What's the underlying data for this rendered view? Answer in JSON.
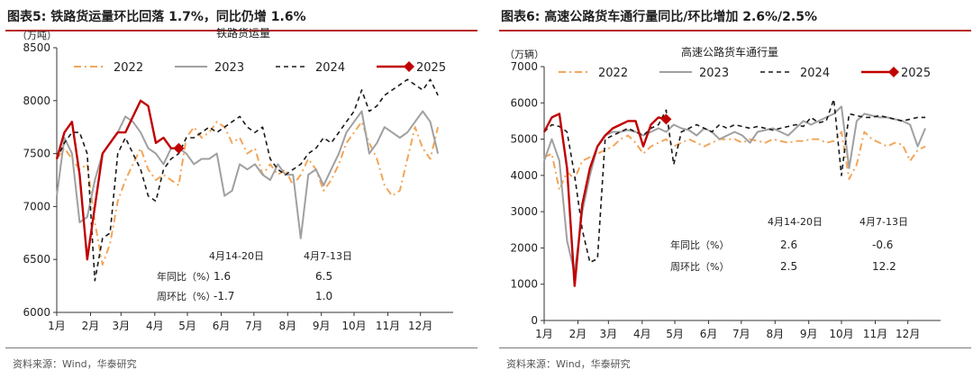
{
  "left": {
    "figure_title": "图表5:  铁路货运量环比回落 1.7%，同比仍增 1.6%",
    "source": "资料来源：Wind，华泰研究",
    "table": {
      "col_headers": [
        "4月14-20日",
        "4月7-13日"
      ],
      "rows": [
        {
          "label": "年同比（%）",
          "values": [
            "1.6",
            "6.5"
          ]
        },
        {
          "label": "周环比（%）",
          "values": [
            "-1.7",
            "1.0"
          ]
        }
      ]
    }
  },
  "right": {
    "figure_title": "图表6:  高速公路货车通行量同比/环比增加 2.6%/2.5%",
    "source": "资料来源：Wind，华泰研究",
    "table": {
      "col_headers": [
        "4月14-20日",
        "4月7-13日"
      ],
      "rows": [
        {
          "label": "年同比（%）",
          "values": [
            "2.6",
            "-0.6"
          ]
        },
        {
          "label": "周环比（%）",
          "values": [
            "2.5",
            "12.2"
          ]
        }
      ]
    }
  },
  "chart_data": [
    {
      "type": "line",
      "title": "铁路货运量",
      "unit_label": "（万吨）",
      "ylim": [
        6000,
        8500
      ],
      "yticks": [
        6000,
        6500,
        7000,
        7500,
        8000,
        8500
      ],
      "xlim": [
        0,
        52
      ],
      "xticks": [
        {
          "label": "1月",
          "pos": 0
        },
        {
          "label": "2月",
          "pos": 4.43
        },
        {
          "label": "3月",
          "pos": 8.43
        },
        {
          "label": "4月",
          "pos": 12.86
        },
        {
          "label": "5月",
          "pos": 17.14
        },
        {
          "label": "6月",
          "pos": 21.57
        },
        {
          "label": "7月",
          "pos": 25.86
        },
        {
          "label": "8月",
          "pos": 30.29
        },
        {
          "label": "9月",
          "pos": 34.71
        },
        {
          "label": "10月",
          "pos": 39.0
        },
        {
          "label": "11月",
          "pos": 43.43
        },
        {
          "label": "12月",
          "pos": 47.71
        }
      ],
      "grid": false,
      "legend_position": "top",
      "series": [
        {
          "name": "2022",
          "color": "#f2a65a",
          "dash": "8,4,2,4",
          "width": 2,
          "x": [
            0,
            1,
            2,
            3,
            4,
            5,
            6,
            7,
            8,
            9,
            10,
            11,
            12,
            13,
            14,
            15,
            16,
            17,
            18,
            19,
            20,
            21,
            22,
            23,
            24,
            25,
            26,
            27,
            28,
            29,
            30,
            31,
            32,
            33,
            34,
            35,
            36,
            37,
            38,
            39,
            40,
            41,
            42,
            43,
            44,
            45,
            46,
            47,
            48,
            49,
            50
          ],
          "y": [
            7450,
            7550,
            7450,
            7350,
            7400,
            6850,
            6450,
            6650,
            7050,
            7250,
            7400,
            7550,
            7350,
            7250,
            7300,
            7250,
            7200,
            7650,
            7750,
            7650,
            7700,
            7800,
            7750,
            7600,
            7650,
            7500,
            7550,
            7300,
            7400,
            7300,
            7350,
            7200,
            7300,
            7450,
            7350,
            7150,
            7250,
            7400,
            7600,
            7700,
            7800,
            7600,
            7450,
            7200,
            7100,
            7150,
            7450,
            7750,
            7550,
            7450,
            7750
          ]
        },
        {
          "name": "2023",
          "color": "#a0a0a0",
          "dash": "",
          "width": 2,
          "x": [
            0,
            1,
            2,
            3,
            4,
            5,
            6,
            7,
            8,
            9,
            10,
            11,
            12,
            13,
            14,
            15,
            16,
            17,
            18,
            19,
            20,
            21,
            22,
            23,
            24,
            25,
            26,
            27,
            28,
            29,
            30,
            31,
            32,
            33,
            34,
            35,
            36,
            37,
            38,
            39,
            40,
            41,
            42,
            43,
            44,
            45,
            46,
            47,
            48,
            49,
            50
          ],
          "y": [
            7100,
            7650,
            7500,
            6850,
            6900,
            7250,
            7500,
            7600,
            7700,
            7850,
            7800,
            7700,
            7550,
            7500,
            7400,
            7550,
            7550,
            7500,
            7400,
            7450,
            7450,
            7500,
            7100,
            7150,
            7400,
            7350,
            7400,
            7300,
            7250,
            7400,
            7300,
            7300,
            6700,
            7300,
            7350,
            7200,
            7350,
            7500,
            7700,
            7800,
            7900,
            7500,
            7600,
            7750,
            7700,
            7650,
            7700,
            7800,
            7900,
            7800,
            7500
          ]
        },
        {
          "name": "2024",
          "color": "#1a1a1a",
          "dash": "5,4",
          "width": 1.6,
          "x": [
            0,
            1,
            2,
            3,
            4,
            5,
            6,
            7,
            8,
            9,
            10,
            11,
            12,
            13,
            14,
            15,
            16,
            17,
            18,
            19,
            20,
            21,
            22,
            23,
            24,
            25,
            26,
            27,
            28,
            29,
            30,
            31,
            32,
            33,
            34,
            35,
            36,
            37,
            38,
            39,
            40,
            41,
            42,
            43,
            44,
            45,
            46,
            47,
            48,
            49,
            50
          ],
          "y": [
            7450,
            7600,
            7700,
            7700,
            7500,
            6300,
            6700,
            6750,
            7500,
            7650,
            7500,
            7350,
            7100,
            7050,
            7350,
            7450,
            7500,
            7650,
            7650,
            7700,
            7750,
            7700,
            7750,
            7800,
            7850,
            7750,
            7700,
            7750,
            7450,
            7350,
            7300,
            7350,
            7400,
            7500,
            7550,
            7650,
            7600,
            7700,
            7800,
            7900,
            8100,
            7900,
            7950,
            8050,
            8100,
            8150,
            8200,
            8150,
            8100,
            8200,
            8050
          ]
        },
        {
          "name": "2025",
          "color": "#c00000",
          "dash": "",
          "width": 2.4,
          "last_marker": "diamond",
          "x": [
            0,
            1,
            2,
            3,
            4,
            5,
            6,
            7,
            8,
            9,
            10,
            11,
            12,
            13,
            14,
            15,
            16
          ],
          "y": [
            7450,
            7700,
            7800,
            7300,
            6500,
            7000,
            7500,
            7600,
            7700,
            7700,
            7850,
            8000,
            7950,
            7600,
            7650,
            7550,
            7550
          ]
        }
      ]
    },
    {
      "type": "line",
      "title": "高速公路货车通行量",
      "unit_label": "（万辆）",
      "ylim": [
        0,
        7000
      ],
      "yticks": [
        0,
        1000,
        2000,
        3000,
        4000,
        5000,
        6000,
        7000
      ],
      "xlim": [
        0,
        52
      ],
      "xticks": [
        {
          "label": "1月",
          "pos": 0
        },
        {
          "label": "2月",
          "pos": 4.43
        },
        {
          "label": "3月",
          "pos": 8.43
        },
        {
          "label": "4月",
          "pos": 12.86
        },
        {
          "label": "5月",
          "pos": 17.14
        },
        {
          "label": "6月",
          "pos": 21.57
        },
        {
          "label": "7月",
          "pos": 25.86
        },
        {
          "label": "8月",
          "pos": 30.29
        },
        {
          "label": "9月",
          "pos": 34.71
        },
        {
          "label": "10月",
          "pos": 39.0
        },
        {
          "label": "11月",
          "pos": 43.43
        },
        {
          "label": "12月",
          "pos": 47.71
        }
      ],
      "grid": false,
      "legend_position": "top",
      "series": [
        {
          "name": "2022",
          "color": "#f2a65a",
          "dash": "8,4,2,4",
          "width": 2,
          "x": [
            0,
            1,
            2,
            3,
            4,
            5,
            6,
            7,
            8,
            9,
            10,
            11,
            12,
            13,
            14,
            15,
            16,
            17,
            18,
            19,
            20,
            21,
            22,
            23,
            24,
            25,
            26,
            27,
            28,
            29,
            30,
            31,
            32,
            33,
            34,
            35,
            36,
            37,
            38,
            39,
            40,
            41,
            42,
            43,
            44,
            45,
            46,
            47,
            48,
            49,
            50
          ],
          "y": [
            4500,
            4600,
            3600,
            4100,
            3900,
            4400,
            4500,
            4600,
            4700,
            4800,
            5000,
            5100,
            4900,
            4600,
            4800,
            4900,
            5000,
            4800,
            4900,
            5000,
            4900,
            4800,
            4900,
            5000,
            5000,
            5000,
            4900,
            5000,
            4950,
            4900,
            5000,
            4950,
            4900,
            4950,
            4950,
            5000,
            5000,
            4900,
            4950,
            5200,
            3900,
            4300,
            5200,
            5000,
            4900,
            4800,
            4900,
            4850,
            4400,
            4700,
            4800
          ]
        },
        {
          "name": "2023",
          "color": "#a0a0a0",
          "dash": "",
          "width": 2,
          "x": [
            0,
            1,
            2,
            3,
            4,
            5,
            6,
            7,
            8,
            9,
            10,
            11,
            12,
            13,
            14,
            15,
            16,
            17,
            18,
            19,
            20,
            21,
            22,
            23,
            24,
            25,
            26,
            27,
            28,
            29,
            30,
            31,
            32,
            33,
            34,
            35,
            36,
            37,
            38,
            39,
            40,
            41,
            42,
            43,
            44,
            45,
            46,
            47,
            48,
            49,
            50
          ],
          "y": [
            4400,
            5000,
            4400,
            2200,
            1300,
            3000,
            4000,
            4800,
            5100,
            5200,
            5200,
            5250,
            5200,
            5100,
            5200,
            5300,
            5200,
            5400,
            5300,
            5250,
            5100,
            5300,
            5200,
            5000,
            5100,
            5200,
            5100,
            4900,
            5200,
            5250,
            5300,
            5200,
            5100,
            5300,
            5500,
            5400,
            5500,
            5600,
            5700,
            5900,
            4200,
            5500,
            5700,
            5650,
            5600,
            5600,
            5550,
            5500,
            5400,
            4800,
            5300
          ]
        },
        {
          "name": "2024",
          "color": "#1a1a1a",
          "dash": "5,4",
          "width": 1.6,
          "x": [
            0,
            1,
            2,
            3,
            4,
            5,
            6,
            7,
            8,
            9,
            10,
            11,
            12,
            13,
            14,
            15,
            16,
            17,
            18,
            19,
            20,
            21,
            22,
            23,
            24,
            25,
            26,
            27,
            28,
            29,
            30,
            31,
            32,
            33,
            34,
            35,
            36,
            37,
            38,
            39,
            40,
            41,
            42,
            43,
            44,
            45,
            46,
            47,
            48,
            49,
            50
          ],
          "y": [
            5200,
            5400,
            5350,
            5200,
            4000,
            2500,
            1600,
            1700,
            5000,
            5100,
            5200,
            5300,
            5200,
            5100,
            5300,
            5400,
            5800,
            4300,
            5200,
            5300,
            5400,
            5300,
            5200,
            5400,
            5300,
            5400,
            5350,
            5300,
            5350,
            5300,
            5250,
            5300,
            5350,
            5400,
            5350,
            5600,
            5450,
            5500,
            6100,
            4000,
            5700,
            5650,
            5600,
            5600,
            5650,
            5600,
            5550,
            5500,
            5550,
            5600,
            5600
          ]
        },
        {
          "name": "2025",
          "color": "#c00000",
          "dash": "",
          "width": 2.4,
          "last_marker": "diamond",
          "x": [
            0,
            1,
            2,
            3,
            4,
            5,
            6,
            7,
            8,
            9,
            10,
            11,
            12,
            13,
            14,
            15,
            16
          ],
          "y": [
            5200,
            5600,
            5700,
            4200,
            950,
            3200,
            4200,
            4800,
            5100,
            5300,
            5400,
            5500,
            5500,
            4800,
            5400,
            5600,
            5550
          ]
        }
      ]
    }
  ]
}
